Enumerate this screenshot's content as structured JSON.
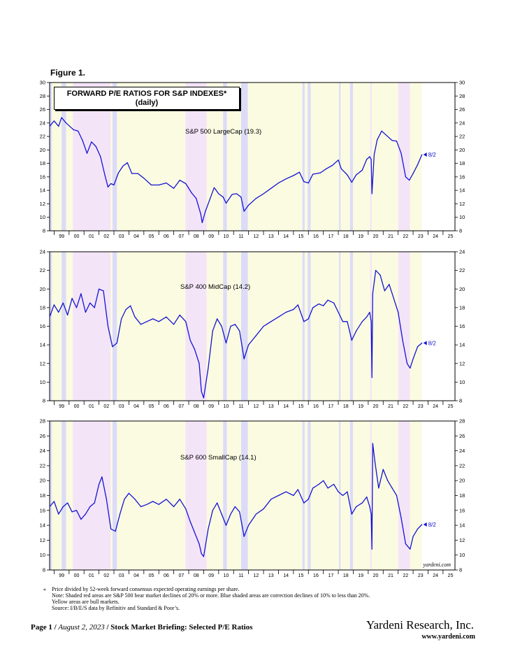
{
  "figure_label": "Figure 1.",
  "title_line1": "FORWARD P/E RATIOS FOR S&P INDEXES*",
  "title_line2": "(daily)",
  "watermark": "yardeni.com",
  "footnote_star": "*",
  "footnote_lines": [
    "Price divided by 52-week forward consensus expected operating earnings per share.",
    "Note: Shaded red areas are S&P 500 bear market declines of 20% or more.  Blue shaded areas are correction declines of 10% to less than 20%.",
    "Yellow areas are bull markets.",
    "Source: I/B/E/S data by Refinitiv and Standard & Poor’s."
  ],
  "footer": {
    "page": "Page 1",
    "date": "August 2, 2023",
    "title": "Stock Market Briefing: Selected P/E Ratios",
    "brand": "Yardeni Research, Inc.",
    "url": "www.yardeni.com"
  },
  "colors": {
    "line": "#1414d2",
    "bear": "#f4e4f8",
    "correction": "#dcdcf8",
    "bull": "#fbfbe2"
  },
  "chart_data": [
    {
      "type": "line",
      "name": "S&P 500 LargeCap (19.3)",
      "end_label": "8/2",
      "ylim": [
        8,
        30
      ],
      "yticks": [
        8,
        10,
        12,
        14,
        16,
        18,
        20,
        22,
        24,
        26,
        28,
        30
      ],
      "xlim": [
        1998.7,
        2025.8
      ],
      "xtick_labels": [
        "99",
        "00",
        "01",
        "02",
        "03",
        "04",
        "05",
        "06",
        "07",
        "08",
        "09",
        "10",
        "11",
        "12",
        "13",
        "14",
        "15",
        "16",
        "17",
        "18",
        "19",
        "20",
        "21",
        "22",
        "23",
        "24",
        "25"
      ],
      "bear_periods": [
        [
          2000.25,
          2002.78
        ],
        [
          2007.78,
          2009.19
        ],
        [
          2020.13,
          2020.23
        ],
        [
          2022.0,
          2022.78
        ]
      ],
      "correction_periods": [
        [
          1998.7,
          1998.85
        ],
        [
          1999.5,
          1999.8
        ],
        [
          2002.9,
          2003.2
        ],
        [
          2010.3,
          2010.55
        ],
        [
          2011.5,
          2011.95
        ],
        [
          2015.6,
          2015.75
        ],
        [
          2015.95,
          2016.15
        ],
        [
          2018.05,
          2018.15
        ],
        [
          2018.78,
          2018.98
        ]
      ],
      "x": [
        1998.7,
        1999.0,
        1999.3,
        1999.5,
        1999.8,
        2000.0,
        2000.3,
        2000.6,
        2000.9,
        2001.2,
        2001.5,
        2001.8,
        2002.1,
        2002.4,
        2002.6,
        2002.8,
        2003.0,
        2003.3,
        2003.6,
        2003.9,
        2004.2,
        2004.6,
        2005.0,
        2005.5,
        2006.0,
        2006.5,
        2007.0,
        2007.4,
        2007.8,
        2008.2,
        2008.5,
        2008.8,
        2008.9,
        2009.1,
        2009.4,
        2009.7,
        2010.0,
        2010.3,
        2010.5,
        2010.9,
        2011.2,
        2011.5,
        2011.7,
        2012.0,
        2012.5,
        2013.0,
        2013.5,
        2014.0,
        2014.5,
        2015.0,
        2015.4,
        2015.7,
        2016.0,
        2016.3,
        2016.8,
        2017.2,
        2017.6,
        2018.0,
        2018.2,
        2018.6,
        2018.9,
        2019.2,
        2019.6,
        2019.9,
        2020.1,
        2020.2,
        2020.25,
        2020.4,
        2020.6,
        2020.9,
        2021.2,
        2021.6,
        2021.9,
        2022.2,
        2022.5,
        2022.75,
        2023.0,
        2023.3,
        2023.59
      ],
      "y": [
        23.5,
        24.3,
        23.5,
        24.8,
        24.0,
        23.6,
        23.0,
        22.8,
        21.4,
        19.5,
        21.2,
        20.5,
        19.0,
        16.2,
        14.5,
        15.0,
        14.8,
        16.6,
        17.6,
        18.1,
        16.5,
        16.5,
        15.8,
        14.8,
        14.8,
        15.1,
        14.3,
        15.5,
        15.0,
        13.6,
        12.8,
        10.5,
        9.2,
        10.8,
        12.6,
        14.4,
        13.5,
        13.0,
        12.1,
        13.4,
        13.5,
        13.0,
        10.9,
        11.8,
        12.8,
        13.5,
        14.3,
        15.1,
        15.7,
        16.2,
        16.7,
        15.3,
        15.1,
        16.4,
        16.6,
        17.2,
        17.7,
        18.5,
        17.2,
        16.3,
        15.2,
        16.3,
        17.0,
        18.6,
        19.0,
        18.6,
        13.5,
        19.3,
        21.5,
        22.8,
        22.2,
        21.4,
        21.3,
        19.5,
        16.0,
        15.5,
        16.5,
        17.8,
        19.3
      ]
    },
    {
      "type": "line",
      "name": "S&P 400 MidCap (14.2)",
      "end_label": "8/2",
      "ylim": [
        8,
        24
      ],
      "yticks": [
        8,
        10,
        12,
        14,
        16,
        18,
        20,
        22,
        24
      ],
      "xlim": [
        1998.7,
        2025.8
      ],
      "xtick_labels": [
        "99",
        "00",
        "01",
        "02",
        "03",
        "04",
        "05",
        "06",
        "07",
        "08",
        "09",
        "10",
        "11",
        "12",
        "13",
        "14",
        "15",
        "16",
        "17",
        "18",
        "19",
        "20",
        "21",
        "22",
        "23",
        "24",
        "25"
      ],
      "bear_periods": [
        [
          2000.25,
          2002.78
        ],
        [
          2007.78,
          2009.19
        ],
        [
          2020.13,
          2020.23
        ],
        [
          2022.0,
          2022.78
        ]
      ],
      "correction_periods": [
        [
          1998.7,
          1998.85
        ],
        [
          1999.5,
          1999.8
        ],
        [
          2002.9,
          2003.2
        ],
        [
          2010.3,
          2010.55
        ],
        [
          2011.5,
          2011.95
        ],
        [
          2015.6,
          2015.75
        ],
        [
          2015.95,
          2016.15
        ],
        [
          2018.05,
          2018.15
        ],
        [
          2018.78,
          2018.98
        ]
      ],
      "x": [
        1998.7,
        1999.0,
        1999.3,
        1999.6,
        1999.9,
        2000.2,
        2000.5,
        2000.8,
        2001.1,
        2001.4,
        2001.7,
        2002.0,
        2002.3,
        2002.6,
        2002.9,
        2003.2,
        2003.5,
        2003.8,
        2004.1,
        2004.4,
        2004.8,
        2005.2,
        2005.6,
        2006.0,
        2006.5,
        2007.0,
        2007.4,
        2007.8,
        2008.1,
        2008.4,
        2008.7,
        2008.85,
        2009.0,
        2009.3,
        2009.6,
        2009.9,
        2010.2,
        2010.5,
        2010.8,
        2011.1,
        2011.4,
        2011.7,
        2012.0,
        2012.5,
        2013.0,
        2013.5,
        2014.0,
        2014.5,
        2015.0,
        2015.3,
        2015.7,
        2016.0,
        2016.3,
        2016.7,
        2017.0,
        2017.3,
        2017.7,
        2018.0,
        2018.3,
        2018.6,
        2018.9,
        2019.2,
        2019.6,
        2019.9,
        2020.1,
        2020.2,
        2020.25,
        2020.3,
        2020.5,
        2020.8,
        2021.1,
        2021.4,
        2021.7,
        2022.0,
        2022.3,
        2022.6,
        2022.8,
        2023.0,
        2023.3,
        2023.59
      ],
      "y": [
        17.0,
        18.3,
        17.5,
        18.5,
        17.2,
        19.0,
        18.0,
        19.5,
        17.5,
        18.5,
        18.0,
        20.0,
        19.8,
        16.0,
        13.8,
        14.2,
        16.8,
        17.8,
        18.2,
        17.0,
        16.2,
        16.5,
        16.8,
        16.5,
        17.0,
        16.2,
        17.2,
        16.5,
        14.5,
        13.5,
        12.0,
        9.0,
        8.3,
        11.5,
        15.5,
        16.8,
        16.0,
        14.2,
        16.0,
        16.2,
        15.5,
        12.5,
        14.0,
        15.0,
        16.0,
        16.5,
        17.0,
        17.5,
        17.8,
        18.3,
        16.5,
        16.8,
        18.0,
        18.4,
        18.2,
        18.8,
        18.5,
        17.5,
        16.5,
        16.5,
        14.5,
        15.5,
        16.5,
        17.0,
        17.5,
        16.5,
        10.5,
        19.5,
        22.0,
        21.5,
        19.8,
        20.5,
        19.0,
        17.5,
        14.5,
        12.0,
        11.5,
        12.5,
        13.8,
        14.2
      ]
    },
    {
      "type": "line",
      "name": "S&P 600 SmallCap (14.1)",
      "end_label": "8/2",
      "ylim": [
        8,
        28
      ],
      "yticks": [
        8,
        10,
        12,
        14,
        16,
        18,
        20,
        22,
        24,
        26,
        28
      ],
      "xlim": [
        1998.7,
        2025.8
      ],
      "xtick_labels": [
        "99",
        "00",
        "01",
        "02",
        "03",
        "04",
        "05",
        "06",
        "07",
        "08",
        "09",
        "10",
        "11",
        "12",
        "13",
        "14",
        "15",
        "16",
        "17",
        "18",
        "19",
        "20",
        "21",
        "22",
        "23",
        "24",
        "25"
      ],
      "bear_periods": [
        [
          2000.25,
          2002.78
        ],
        [
          2007.78,
          2009.19
        ],
        [
          2020.13,
          2020.23
        ],
        [
          2022.0,
          2022.78
        ]
      ],
      "correction_periods": [
        [
          1998.7,
          1998.85
        ],
        [
          1999.5,
          1999.8
        ],
        [
          2002.9,
          2003.2
        ],
        [
          2010.3,
          2010.55
        ],
        [
          2011.5,
          2011.95
        ],
        [
          2015.6,
          2015.75
        ],
        [
          2015.95,
          2016.15
        ],
        [
          2018.05,
          2018.15
        ],
        [
          2018.78,
          2018.98
        ]
      ],
      "x": [
        1998.7,
        1999.0,
        1999.3,
        1999.6,
        1999.9,
        2000.2,
        2000.5,
        2000.8,
        2001.1,
        2001.4,
        2001.7,
        2002.0,
        2002.2,
        2002.5,
        2002.8,
        2003.1,
        2003.4,
        2003.7,
        2004.0,
        2004.4,
        2004.8,
        2005.2,
        2005.6,
        2006.0,
        2006.5,
        2007.0,
        2007.4,
        2007.8,
        2008.1,
        2008.4,
        2008.7,
        2008.85,
        2009.0,
        2009.3,
        2009.6,
        2009.9,
        2010.2,
        2010.5,
        2010.8,
        2011.1,
        2011.4,
        2011.7,
        2012.0,
        2012.5,
        2013.0,
        2013.5,
        2014.0,
        2014.5,
        2015.0,
        2015.3,
        2015.7,
        2016.0,
        2016.3,
        2016.7,
        2017.0,
        2017.3,
        2017.7,
        2018.0,
        2018.3,
        2018.6,
        2018.9,
        2019.2,
        2019.6,
        2019.9,
        2020.1,
        2020.2,
        2020.25,
        2020.3,
        2020.45,
        2020.7,
        2021.0,
        2021.3,
        2021.6,
        2021.9,
        2022.2,
        2022.5,
        2022.8,
        2023.0,
        2023.3,
        2023.59
      ],
      "y": [
        16.5,
        17.2,
        15.5,
        16.5,
        17.0,
        15.8,
        16.0,
        14.8,
        15.5,
        16.5,
        17.0,
        19.5,
        20.5,
        17.5,
        13.5,
        13.2,
        15.5,
        17.5,
        18.3,
        17.5,
        16.5,
        16.8,
        17.2,
        16.8,
        17.5,
        16.5,
        17.5,
        16.2,
        14.5,
        13.0,
        11.5,
        10.2,
        9.8,
        13.5,
        16.0,
        17.0,
        15.5,
        14.0,
        15.5,
        16.5,
        15.8,
        12.5,
        14.0,
        15.5,
        16.2,
        17.5,
        18.0,
        18.5,
        18.0,
        18.8,
        17.0,
        17.5,
        19.0,
        19.5,
        20.0,
        19.0,
        19.5,
        18.5,
        18.0,
        18.5,
        15.5,
        16.5,
        17.0,
        17.8,
        16.5,
        15.5,
        10.8,
        25.0,
        22.5,
        19.0,
        21.5,
        20.0,
        19.0,
        18.0,
        15.0,
        11.5,
        10.8,
        12.5,
        13.5,
        14.1
      ]
    }
  ]
}
